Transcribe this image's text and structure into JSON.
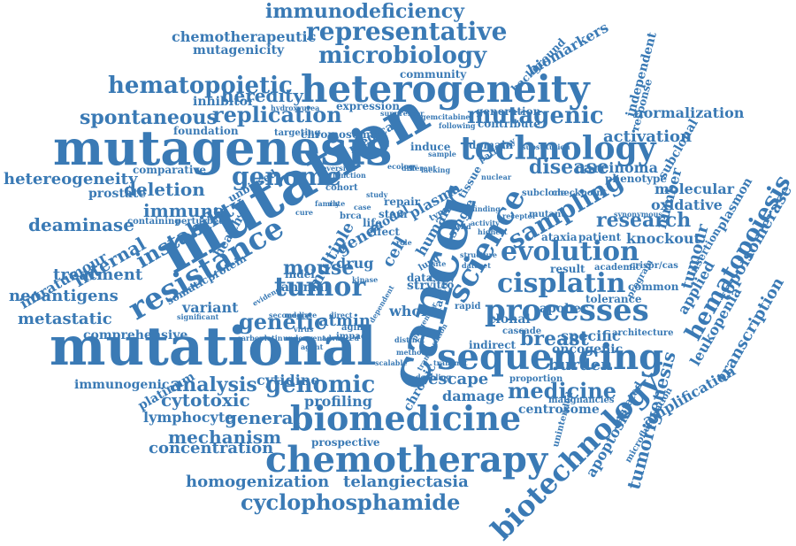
{
  "style": {
    "word_color": "#3a7ab5",
    "background": "#ffffff"
  },
  "words": [
    {
      "text": "mutation",
      "rot": -30
    },
    {
      "text": "mutational",
      "rot": 0
    },
    {
      "text": "mutagenesis",
      "rot": 0
    },
    {
      "text": "cancer",
      "rot": -75
    },
    {
      "text": "heterogeneity",
      "rot": 0
    },
    {
      "text": "sequencing",
      "rot": 0
    },
    {
      "text": "chemotherapy",
      "rot": 0
    },
    {
      "text": "biomedicine",
      "rot": 0
    },
    {
      "text": "processes",
      "rot": 0
    },
    {
      "text": "technology",
      "rot": 0
    },
    {
      "text": "resistance",
      "rot": -30
    },
    {
      "text": "science",
      "rot": -60
    },
    {
      "text": "evolution",
      "rot": 0
    },
    {
      "text": "sampling",
      "rot": -30
    },
    {
      "text": "cisplatin",
      "rot": 0
    },
    {
      "text": "biotechnology",
      "rot": -45
    },
    {
      "text": "tumor",
      "rot": 0
    },
    {
      "text": "genome",
      "rot": 0
    },
    {
      "text": "genomic",
      "rot": 0
    },
    {
      "text": "instability",
      "rot": -30
    },
    {
      "text": "representative",
      "rot": 0
    },
    {
      "text": "microbiology",
      "rot": 0
    },
    {
      "text": "hematopoiesis",
      "rot": -60
    },
    {
      "text": "cyclophosphamide",
      "rot": 0
    },
    {
      "text": "replication",
      "rot": 0
    },
    {
      "text": "hematopoietic",
      "rot": 0
    },
    {
      "text": "mutagenic",
      "rot": 0
    },
    {
      "text": "immunodeficiency",
      "rot": 0
    },
    {
      "text": "medicine",
      "rot": 0
    },
    {
      "text": "research",
      "rot": 0
    },
    {
      "text": "genetic",
      "rot": 0
    },
    {
      "text": "mouse",
      "rot": 0
    },
    {
      "text": "disease",
      "rot": 0
    },
    {
      "text": "breast",
      "rot": 0
    },
    {
      "text": "analysis",
      "rot": 0
    },
    {
      "text": "mechanism",
      "rot": 0
    },
    {
      "text": "concentration",
      "rot": 0
    },
    {
      "text": "homogenization",
      "rot": 0
    },
    {
      "text": "telangiectasia",
      "rot": 0
    },
    {
      "text": "spontaneous",
      "rot": 0
    },
    {
      "text": "heredity",
      "rot": 0
    },
    {
      "text": "deletion",
      "rot": 0
    },
    {
      "text": "hetereogeneity",
      "rot": 0
    },
    {
      "text": "deaminase",
      "rot": 0
    },
    {
      "text": "internal",
      "rot": -30
    },
    {
      "text": "immune",
      "rot": 0
    },
    {
      "text": "treatment",
      "rot": 0
    },
    {
      "text": "neoantigens",
      "rot": 0
    },
    {
      "text": "metastatic",
      "rot": 0
    },
    {
      "text": "cytotoxic",
      "rot": 0
    },
    {
      "text": "general",
      "rot": 0
    },
    {
      "text": "lymphocyte",
      "rot": 0
    },
    {
      "text": "profiling",
      "rot": 0
    },
    {
      "text": "cytidine",
      "rot": 0
    },
    {
      "text": "atmin",
      "rot": 0
    },
    {
      "text": "escape",
      "rot": 0
    },
    {
      "text": "damage",
      "rot": 0
    },
    {
      "text": "burden",
      "rot": 0
    },
    {
      "text": "activation",
      "rot": 0
    },
    {
      "text": "normalization",
      "rot": 0
    },
    {
      "text": "molecular",
      "rot": 0
    },
    {
      "text": "oxidative",
      "rot": 0
    },
    {
      "text": "knockout",
      "rot": 0
    },
    {
      "text": "carcinoma",
      "rot": 0
    },
    {
      "text": "specific",
      "rot": 0
    },
    {
      "text": "oncogenic",
      "rot": 0
    },
    {
      "text": "tumorigenesis",
      "rot": -75
    },
    {
      "text": "transcription",
      "rot": -60
    },
    {
      "text": "topoisomerase",
      "rot": -60
    },
    {
      "text": "leukopenia",
      "rot": -60
    },
    {
      "text": "plasmon",
      "rot": -60
    },
    {
      "text": "amplification",
      "rot": -30
    },
    {
      "text": "apoptosis",
      "rot": -60
    },
    {
      "text": "tumour",
      "rot": -75
    },
    {
      "text": "applied",
      "rot": -60
    },
    {
      "text": "subclonal",
      "rot": -60
    },
    {
      "text": "number",
      "rot": -75
    },
    {
      "text": "centrosome",
      "rot": 0
    },
    {
      "text": "chemotherapeutic",
      "rot": 0
    },
    {
      "text": "mutagenicity",
      "rot": 0
    },
    {
      "text": "inhibitor",
      "rot": 0
    },
    {
      "text": "biomarkers",
      "rot": -30
    },
    {
      "text": "background",
      "rot": -45
    },
    {
      "text": "independent",
      "rot": -75
    },
    {
      "text": "response",
      "rot": -75
    },
    {
      "text": "expression",
      "rot": 0
    },
    {
      "text": "generation",
      "rot": 0
    },
    {
      "text": "contribute",
      "rot": 0
    },
    {
      "text": "chromosomal",
      "rot": 0
    },
    {
      "text": "foundation",
      "rot": 0
    },
    {
      "text": "community",
      "rot": 0
    },
    {
      "text": "targeting",
      "rot": 0
    },
    {
      "text": "prostate",
      "rot": 0
    },
    {
      "text": "comparative",
      "rot": 0
    },
    {
      "text": "intratumour",
      "rot": -30
    },
    {
      "text": "health",
      "rot": -60
    },
    {
      "text": "somatic",
      "rot": -30
    },
    {
      "text": "protein",
      "rot": -30
    },
    {
      "text": "variant",
      "rot": 0
    },
    {
      "text": "comprehensive",
      "rot": 0
    },
    {
      "text": "immunogenic",
      "rot": 0
    },
    {
      "text": "platinum",
      "rot": -30
    },
    {
      "text": "gene",
      "rot": -30
    },
    {
      "text": "multiple",
      "rot": -60
    },
    {
      "text": "drug",
      "rot": 0
    },
    {
      "text": "animal",
      "rot": 0
    },
    {
      "text": "whole",
      "rot": 0
    },
    {
      "text": "clonal",
      "rot": 0
    },
    {
      "text": "apobec",
      "rot": 0
    },
    {
      "text": "tolerance",
      "rot": 0
    },
    {
      "text": "common",
      "rot": 0
    },
    {
      "text": "ataxia",
      "rot": 0
    },
    {
      "text": "patient",
      "rot": 0
    },
    {
      "text": "result",
      "rot": 0
    },
    {
      "text": "academic",
      "rot": 0
    },
    {
      "text": "crispr/cas",
      "rot": 0
    },
    {
      "text": "insertion",
      "rot": -60
    },
    {
      "text": "phenotype",
      "rot": 0
    },
    {
      "text": "mutant",
      "rot": 0
    },
    {
      "text": "checkpoint",
      "rot": 0
    },
    {
      "text": "subclone",
      "rot": 0
    },
    {
      "text": "cascade",
      "rot": 0
    },
    {
      "text": "architecture",
      "rot": 0
    },
    {
      "text": "proportion",
      "rot": 0
    },
    {
      "text": "malignancies",
      "rot": 0
    },
    {
      "text": "mutated",
      "rot": -60
    },
    {
      "text": "unintended",
      "rot": -75
    },
    {
      "text": "microfluidization",
      "rot": -60
    },
    {
      "text": "chronic",
      "rot": -60
    },
    {
      "text": "prospective",
      "rot": 0
    },
    {
      "text": "indirect",
      "rot": 0
    },
    {
      "text": "rapid",
      "rot": 0
    },
    {
      "text": "human",
      "rot": -60
    },
    {
      "text": "single",
      "rot": -60
    },
    {
      "text": "tissue",
      "rot": -60
    },
    {
      "text": "plasma",
      "rot": -30
    },
    {
      "text": "cell",
      "rot": -60
    },
    {
      "text": "model",
      "rot": -30
    },
    {
      "text": "data",
      "rot": 0
    },
    {
      "text": "copy",
      "rot": 0
    },
    {
      "text": "str",
      "rot": 0
    },
    {
      "text": "vitro",
      "rot": 0
    },
    {
      "text": "life",
      "rot": 0
    },
    {
      "text": "effect",
      "rot": 0
    },
    {
      "text": "repair",
      "rot": 0
    },
    {
      "text": "stem",
      "rot": 0
    },
    {
      "text": "induce",
      "rot": 0
    },
    {
      "text": "domain",
      "rot": 0
    },
    {
      "text": "cohort",
      "rot": 0
    },
    {
      "text": "unbiased",
      "rot": -30
    },
    {
      "text": "perturbed",
      "rot": 0
    },
    {
      "text": "containing",
      "rot": 0
    },
    {
      "text": "medical",
      "rot": -30
    },
    {
      "text": "indel",
      "rot": 0
    },
    {
      "text": "brca",
      "rot": 0
    },
    {
      "text": "aging",
      "rot": 0
    },
    {
      "text": "impact",
      "rot": 0
    },
    {
      "text": "direct",
      "rot": 0
    },
    {
      "text": "mediate",
      "rot": 0
    },
    {
      "text": "significant",
      "rot": 0
    },
    {
      "text": "factor",
      "rot": -75
    },
    {
      "text": "family",
      "rot": 0
    },
    {
      "text": "hydroxyurea",
      "rot": 0
    },
    {
      "text": "suppressor",
      "rot": 0
    },
    {
      "text": "gemcitabine",
      "rot": 0
    },
    {
      "text": "substitution",
      "rot": 0
    },
    {
      "text": "function",
      "rot": 0
    },
    {
      "text": "pathway",
      "rot": -30
    },
    {
      "text": "virus",
      "rot": 0
    },
    {
      "text": "following",
      "rot": 0
    },
    {
      "text": "synonymous",
      "rot": 0
    },
    {
      "text": "carboplatin",
      "rot": 0
    },
    {
      "text": "underwent",
      "rot": 0
    },
    {
      "text": "advanced",
      "rot": 0
    },
    {
      "text": "scalable",
      "rot": 0
    },
    {
      "text": "finding",
      "rot": 0
    },
    {
      "text": "sample",
      "rot": 0
    },
    {
      "text": "lung",
      "rot": -30
    },
    {
      "text": "evidence",
      "rot": -30
    },
    {
      "text": "lacking",
      "rot": 0
    },
    {
      "text": "method",
      "rot": 0
    },
    {
      "text": "progenitor",
      "rot": -60
    },
    {
      "text": "highest",
      "rot": 0
    },
    {
      "text": "distinct",
      "rot": 0
    },
    {
      "text": "dependent",
      "rot": -60
    },
    {
      "text": "receptor",
      "rot": 0
    },
    {
      "text": "role",
      "rot": 0
    },
    {
      "text": "different",
      "rot": 0
    },
    {
      "text": "reversion",
      "rot": 0
    },
    {
      "text": "structure",
      "rot": 0
    },
    {
      "text": "activity",
      "rot": 0
    },
    {
      "text": "kinase",
      "rot": 0
    },
    {
      "text": "doubling",
      "rot": 0
    },
    {
      "text": "program",
      "rot": -60
    },
    {
      "text": "ecology",
      "rot": 0
    },
    {
      "text": "secondary",
      "rot": 0
    },
    {
      "text": "cure",
      "rot": 0
    },
    {
      "text": "type",
      "rot": -30
    },
    {
      "text": "site",
      "rot": 0
    },
    {
      "text": "wild",
      "rot": 0
    },
    {
      "text": "dataset",
      "rot": 0
    },
    {
      "text": "rate",
      "rot": 0
    },
    {
      "text": "translocation",
      "rot": -60
    },
    {
      "text": "case",
      "rot": 0
    },
    {
      "text": "study",
      "rot": 0
    },
    {
      "text": "agent",
      "rot": 0
    },
    {
      "text": "transmit",
      "rot": 0
    },
    {
      "text": "nuclear",
      "rot": 0
    }
  ]
}
